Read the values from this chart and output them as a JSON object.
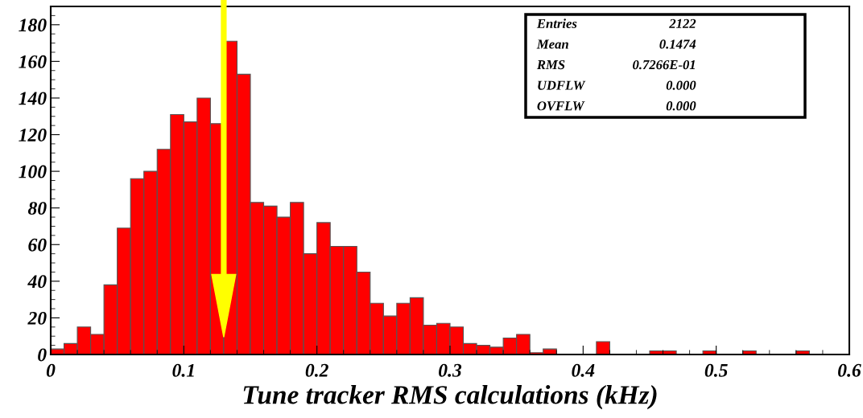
{
  "chart_data": {
    "type": "histogram",
    "xlabel": "Tune tracker RMS calculations (kHz)",
    "bins": [
      0,
      0.01,
      0.02,
      0.03,
      0.04,
      0.05,
      0.06,
      0.07,
      0.08,
      0.09,
      0.1,
      0.11,
      0.12,
      0.13,
      0.14,
      0.15,
      0.16,
      0.17,
      0.18,
      0.19,
      0.2,
      0.21,
      0.22,
      0.23,
      0.24,
      0.25,
      0.26,
      0.27,
      0.28,
      0.29,
      0.3,
      0.31,
      0.32,
      0.33,
      0.34,
      0.35,
      0.36,
      0.37,
      0.38,
      0.39,
      0.4,
      0.41,
      0.42,
      0.43,
      0.44,
      0.45,
      0.46,
      0.47,
      0.48,
      0.49,
      0.5,
      0.51,
      0.52,
      0.53,
      0.54,
      0.55,
      0.56,
      0.57,
      0.58,
      0.59,
      0.6
    ],
    "values": [
      3,
      6,
      15,
      11,
      38,
      69,
      96,
      100,
      112,
      131,
      127,
      140,
      126,
      171,
      153,
      83,
      81,
      75,
      83,
      55,
      72,
      59,
      59,
      45,
      28,
      21,
      28,
      31,
      16,
      17,
      15,
      6,
      5,
      4,
      9,
      11,
      1,
      3,
      0,
      0,
      0,
      7,
      0,
      0,
      0,
      2,
      2,
      0,
      0,
      2,
      0,
      0,
      2,
      0,
      0,
      0,
      2,
      0,
      0,
      0
    ],
    "color": "#ff0000",
    "xlim": [
      0,
      0.6
    ],
    "xticks": [
      0,
      0.1,
      0.2,
      0.3,
      0.4,
      0.5,
      0.6
    ],
    "ylim": [
      0,
      190
    ],
    "yticks": [
      0,
      20,
      40,
      60,
      80,
      100,
      120,
      140,
      160,
      180
    ],
    "ref_lines": [
      {
        "axis": "x",
        "value": 0.13,
        "color": "#ffff00"
      }
    ],
    "annotations": [
      "Entries",
      "2122",
      "Mean",
      "0.1474",
      "RMS",
      "0.7266E-01",
      "UDFLW",
      "0.000",
      "OVFLW",
      "0.000"
    ],
    "grid": false
  }
}
